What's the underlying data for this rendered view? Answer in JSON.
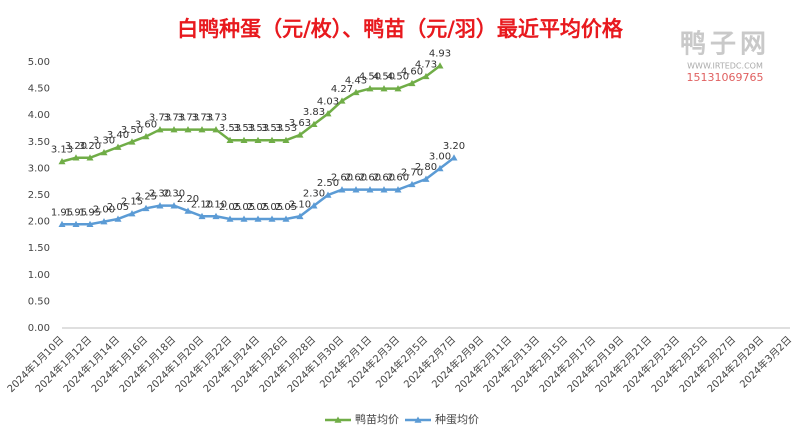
{
  "chart_data": {
    "type": "line",
    "title": "白鸭种蛋（元/枚）、鸭苗（元/羽）最近平均价格",
    "watermark": {
      "name": "鸭子网",
      "site": "WWW.IRTEDC.COM",
      "phone": "15131069765"
    },
    "categories": [
      "2024年1月10日",
      null,
      "2024年1月12日",
      null,
      "2024年1月14日",
      null,
      "2024年1月16日",
      null,
      "2024年1月18日",
      null,
      "2024年1月20日",
      null,
      "2024年1月22日",
      null,
      "2024年1月24日",
      null,
      "2024年1月26日",
      null,
      "2024年1月28日",
      null,
      "2024年1月30日",
      null,
      "2024年2月1日",
      null,
      "2024年2月3日",
      null,
      "2024年2月5日",
      null,
      "2024年2月7日",
      null,
      "2024年2月9日",
      null,
      "2024年2月11日",
      null,
      "2024年2月13日",
      null,
      "2024年2月15日",
      null,
      "2024年2月17日",
      null,
      "2024年2月19日",
      null,
      "2024年2月21日",
      null,
      "2024年2月23日",
      null,
      "2024年2月25日",
      null,
      "2024年2月27日",
      null,
      "2024年2月29日",
      null,
      "2024年3月2日"
    ],
    "series": [
      {
        "name": "鸭苗均价",
        "color": "#70ad47",
        "values": [
          3.13,
          3.2,
          3.2,
          3.3,
          3.4,
          3.5,
          3.6,
          3.73,
          3.73,
          3.73,
          3.73,
          3.73,
          3.53,
          3.53,
          3.53,
          3.53,
          3.53,
          3.63,
          3.83,
          4.03,
          4.27,
          4.43,
          4.5,
          4.5,
          4.5,
          4.6,
          4.73,
          4.93,
          null,
          null,
          null,
          null,
          null,
          null,
          null,
          null,
          null,
          null,
          null,
          null,
          null,
          null,
          null,
          null,
          null,
          null,
          null,
          null,
          null,
          null,
          null,
          null,
          null
        ],
        "value_labels": [
          "3.13",
          "3.20",
          "3.20",
          "3.30",
          "3.40",
          "3.50",
          "3.60",
          "3.73",
          "3.73",
          "3.73",
          "3.73",
          "3.73",
          "3.53",
          "3.53",
          "3.53",
          "3.53",
          "3.53",
          "3.63",
          "3.83",
          "4.03",
          "4.27",
          "4.43",
          "4.50",
          "4.50",
          "4.50",
          "4.60",
          "4.73",
          "4.93",
          null,
          null,
          null,
          null,
          null,
          null,
          null,
          null,
          null,
          null,
          null,
          null,
          null,
          null,
          null,
          null,
          null,
          null,
          null,
          null,
          null,
          null,
          null,
          null,
          null
        ]
      },
      {
        "name": "种蛋均价",
        "color": "#5b9bd5",
        "values": [
          1.95,
          1.95,
          1.95,
          2.0,
          2.05,
          2.15,
          2.25,
          2.3,
          2.3,
          2.2,
          2.1,
          2.1,
          2.05,
          2.05,
          2.05,
          2.05,
          2.05,
          2.1,
          2.3,
          2.5,
          2.6,
          2.6,
          2.6,
          2.6,
          2.6,
          2.7,
          2.8,
          3.0,
          3.2,
          null,
          null,
          null,
          null,
          null,
          null,
          null,
          null,
          null,
          null,
          null,
          null,
          null,
          null,
          null,
          null,
          null,
          null,
          null,
          null,
          null,
          null,
          null,
          null
        ],
        "value_labels": [
          "1.95",
          "1.95",
          "1.95",
          "2.00",
          "2.05",
          "2.15",
          "2.25",
          "2.30",
          "2.30",
          "2.20",
          "2.10",
          "2.10",
          "2.05",
          "2.05",
          "2.05",
          "2.05",
          "2.05",
          "2.10",
          "2.30",
          "2.50",
          "2.60",
          "2.60",
          "2.60",
          "2.60",
          "2.60",
          "2.70",
          "2.80",
          "3.00",
          "3.20",
          null,
          null,
          null,
          null,
          null,
          null,
          null,
          null,
          null,
          null,
          null,
          null,
          null,
          null,
          null,
          null,
          null,
          null,
          null,
          null,
          null,
          null,
          null,
          null
        ]
      }
    ],
    "ylim": [
      0,
      5
    ],
    "yticks": [
      {
        "value": 0,
        "label": "0.00"
      },
      {
        "value": 0.5,
        "label": "0.50"
      },
      {
        "value": 1,
        "label": "1.00"
      },
      {
        "value": 1.5,
        "label": "1.50"
      },
      {
        "value": 2,
        "label": "2.00"
      },
      {
        "value": 2.5,
        "label": "2.50"
      },
      {
        "value": 3,
        "label": "3.00"
      },
      {
        "value": 3.5,
        "label": "3.50"
      },
      {
        "value": 4,
        "label": "4.00"
      },
      {
        "value": 4.5,
        "label": "4.50"
      },
      {
        "value": 5,
        "label": "5.00"
      }
    ],
    "grid": false,
    "legend": "bottom",
    "markers": "triangle"
  }
}
